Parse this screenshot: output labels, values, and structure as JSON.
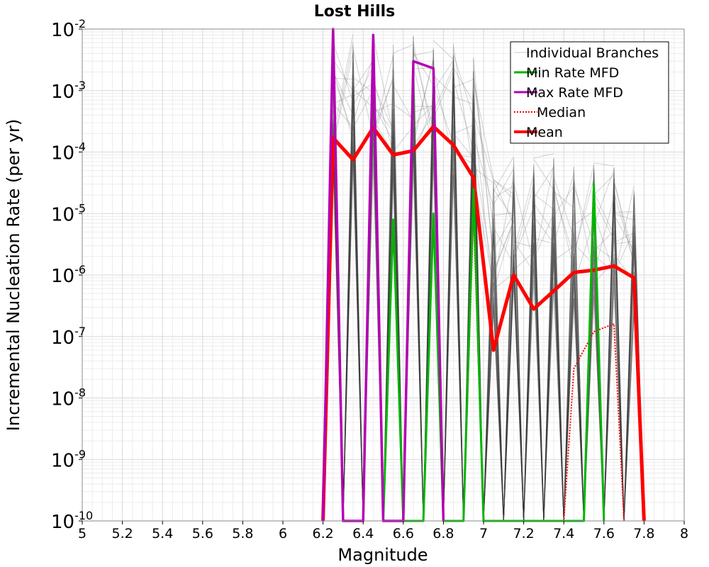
{
  "chart_data": {
    "type": "line",
    "title": "Lost Hills",
    "xlabel": "Magnitude",
    "ylabel": "Incremental Nucleation Rate (per yr)",
    "xlim": [
      5,
      8
    ],
    "ylim_log10": [
      -10,
      -2
    ],
    "y_scale": "log",
    "grid": true,
    "legend_position": "top-right",
    "x_tick_labels": [
      "5",
      "5.2",
      "5.4",
      "5.6",
      "5.8",
      "6",
      "6.2",
      "6.4",
      "6.6",
      "6.8",
      "7",
      "7.2",
      "7.4",
      "7.6",
      "7.8",
      "8"
    ],
    "y_tick_exponents": [
      "-10",
      "-9",
      "-8",
      "-7",
      "-6",
      "-5",
      "-4",
      "-3",
      "-2"
    ],
    "legend": [
      {
        "label": "Individual Branches",
        "color": "#c8c8c8",
        "style": "thin"
      },
      {
        "label": "Min Rate MFD",
        "color": "#00b400",
        "style": "solid"
      },
      {
        "label": "Max Rate MFD",
        "color": "#b400b4",
        "style": "solid"
      },
      {
        "label": "Median",
        "color": "#ff0000",
        "style": "dotted"
      },
      {
        "label": "Mean",
        "color": "#ff0000",
        "style": "thick"
      }
    ],
    "branch_bin_peaks": [
      {
        "x": 6.25,
        "ymax": 0.009
      },
      {
        "x": 6.35,
        "ymax": 0.009
      },
      {
        "x": 6.45,
        "ymax": 0.008
      },
      {
        "x": 6.55,
        "ymax": 0.006
      },
      {
        "x": 6.65,
        "ymax": 0.008
      },
      {
        "x": 6.75,
        "ymax": 0.009
      },
      {
        "x": 6.85,
        "ymax": 0.006
      },
      {
        "x": 6.95,
        "ymax": 0.004
      },
      {
        "x": 7.05,
        "ymax": 4e-05
      },
      {
        "x": 7.15,
        "ymax": 9e-05
      },
      {
        "x": 7.25,
        "ymax": 8e-05
      },
      {
        "x": 7.35,
        "ymax": 0.0001
      },
      {
        "x": 7.45,
        "ymax": 6e-05
      },
      {
        "x": 7.55,
        "ymax": 7e-05
      },
      {
        "x": 7.65,
        "ymax": 6e-05
      },
      {
        "x": 7.75,
        "ymax": 3e-05
      }
    ],
    "series": [
      {
        "name": "Mean",
        "color": "#ff0000",
        "x": [
          6.2,
          6.25,
          6.35,
          6.45,
          6.55,
          6.65,
          6.75,
          6.85,
          6.95,
          7.05,
          7.15,
          7.25,
          7.35,
          7.45,
          7.55,
          7.65,
          7.75,
          7.8
        ],
        "y": [
          1e-10,
          0.00017,
          7.5e-05,
          0.00025,
          9e-05,
          0.000105,
          0.00026,
          0.00013,
          3.8e-05,
          6e-08,
          1e-06,
          2.8e-07,
          5.5e-07,
          1.1e-06,
          1.2e-06,
          1.4e-06,
          9e-07,
          1e-10
        ]
      },
      {
        "name": "Median",
        "color": "#ff0000",
        "x": [
          6.7,
          6.75,
          6.8,
          6.9,
          6.95,
          7.0,
          7.4,
          7.45,
          7.55,
          7.65,
          7.7
        ],
        "y": [
          1e-10,
          1e-05,
          1e-10,
          1e-10,
          1e-05,
          1e-10,
          1e-10,
          3e-08,
          1.2e-07,
          1.6e-07,
          1e-10
        ]
      },
      {
        "name": "Min Rate MFD",
        "color": "#00b400",
        "x": [
          6.5,
          6.55,
          6.6,
          6.7,
          6.75,
          6.8,
          6.9,
          6.95,
          7.0,
          7.5,
          7.55,
          7.6
        ],
        "y": [
          1e-10,
          8e-06,
          1e-10,
          1e-10,
          1e-05,
          1e-10,
          1e-10,
          2.5e-05,
          1e-10,
          1e-10,
          3e-05,
          1e-10
        ]
      },
      {
        "name": "Max Rate MFD",
        "color": "#b400b4",
        "x": [
          6.2,
          6.25,
          6.3,
          6.4,
          6.45,
          6.5,
          6.6,
          6.65,
          6.75,
          6.8
        ],
        "y": [
          1e-10,
          0.01,
          1e-10,
          1e-10,
          0.008,
          1e-10,
          1e-10,
          0.003,
          0.0023,
          1e-10
        ]
      }
    ]
  }
}
